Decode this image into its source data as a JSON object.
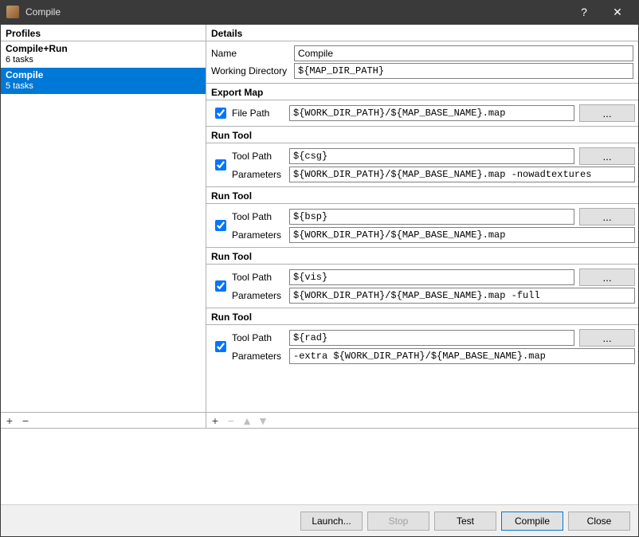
{
  "window": {
    "title": "Compile",
    "help": "?",
    "close": "✕"
  },
  "panels": {
    "profiles_header": "Profiles",
    "details_header": "Details"
  },
  "profiles": [
    {
      "name": "Compile+Run",
      "sub": "6 tasks",
      "selected": false
    },
    {
      "name": "Compile",
      "sub": "5 tasks",
      "selected": true
    }
  ],
  "profile_toolbar": {
    "add": "+",
    "remove": "−"
  },
  "details": {
    "name_label": "Name",
    "name_value": "Compile",
    "wd_label": "Working Directory",
    "wd_value": "${MAP_DIR_PATH}"
  },
  "tasks": [
    {
      "title": "Export Map",
      "enabled": true,
      "type": "export",
      "filepath_label": "File Path",
      "filepath_value": "${WORK_DIR_PATH}/${MAP_BASE_NAME}.map",
      "browse": "..."
    },
    {
      "title": "Run Tool",
      "enabled": true,
      "type": "tool",
      "toolpath_label": "Tool Path",
      "toolpath_value": "${csg}",
      "params_label": "Parameters",
      "params_value": "${WORK_DIR_PATH}/${MAP_BASE_NAME}.map -nowadtextures",
      "browse": "..."
    },
    {
      "title": "Run Tool",
      "enabled": true,
      "type": "tool",
      "toolpath_label": "Tool Path",
      "toolpath_value": "${bsp}",
      "params_label": "Parameters",
      "params_value": "${WORK_DIR_PATH}/${MAP_BASE_NAME}.map",
      "browse": "..."
    },
    {
      "title": "Run Tool",
      "enabled": true,
      "type": "tool",
      "toolpath_label": "Tool Path",
      "toolpath_value": "${vis}",
      "params_label": "Parameters",
      "params_value": "${WORK_DIR_PATH}/${MAP_BASE_NAME}.map -full",
      "browse": "..."
    },
    {
      "title": "Run Tool",
      "enabled": true,
      "type": "tool",
      "toolpath_label": "Tool Path",
      "toolpath_value": "${rad}",
      "params_label": "Parameters",
      "params_value": "-extra ${WORK_DIR_PATH}/${MAP_BASE_NAME}.map",
      "browse": "..."
    }
  ],
  "task_toolbar": {
    "add": "+",
    "remove": "−",
    "up": "▲",
    "down": "▼"
  },
  "footer": {
    "launch": "Launch...",
    "stop": "Stop",
    "test": "Test",
    "compile": "Compile",
    "close": "Close"
  },
  "colors": {
    "selection": "#0078d7",
    "titlebar": "#3a3a3a",
    "button_bg": "#e1e1e1",
    "button_border": "#adadad"
  }
}
